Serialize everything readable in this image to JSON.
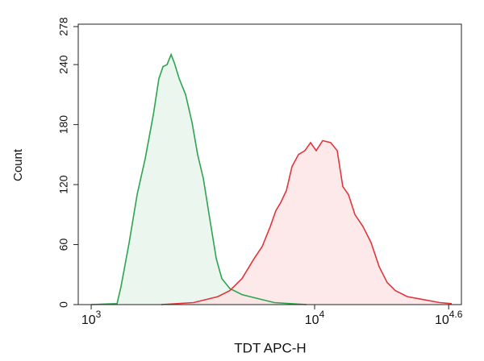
{
  "chart_data": {
    "type": "histogram-overlay",
    "x_label": "TDT APC-H",
    "y_label": "Count",
    "xscale": "log",
    "xlim": [
      875,
      45400
    ],
    "xticks": [
      {
        "value": 1000,
        "label": "10",
        "exponent": "3"
      },
      {
        "value": 10000,
        "label": "10",
        "exponent": "4"
      },
      {
        "value": 39810.717,
        "label": "10",
        "exponent": "4.6"
      }
    ],
    "ylim": [
      0,
      278
    ],
    "yticks": [
      0,
      60,
      120,
      180,
      240,
      278
    ],
    "series": [
      {
        "color": "#2ea44f",
        "fill": "#e6f4ea",
        "x": [
          1000,
          1305,
          1360,
          1478,
          1606,
          1745,
          1897,
          2010,
          2096,
          2185,
          2278,
          2354,
          2475,
          2645,
          2827,
          2996,
          3176,
          3394,
          3628,
          3844,
          4178,
          4733,
          5588,
          6598,
          7793,
          9203
        ],
        "values": [
          0,
          1,
          18,
          62,
          110,
          146,
          190,
          226,
          238,
          240,
          250,
          242,
          226,
          210,
          182,
          150,
          126,
          86,
          46,
          26,
          16,
          10,
          6,
          2,
          1,
          0
        ]
      },
      {
        "color": "#e0363c",
        "fill": "#fde4e4",
        "x": [
          2061,
          2874,
          3688,
          4178,
          4733,
          5361,
          5826,
          6331,
          6708,
          7054,
          7474,
          7923,
          8470,
          9050,
          9592,
          10167,
          10867,
          11808,
          12623,
          13378,
          14178,
          15154,
          16465,
          17889,
          19440,
          21123,
          22962,
          26013,
          30719,
          36277,
          41083
        ],
        "values": [
          0,
          2,
          8,
          14,
          26,
          46,
          58,
          78,
          94,
          102,
          114,
          138,
          150,
          154,
          162,
          154,
          164,
          162,
          154,
          118,
          110,
          90,
          78,
          62,
          38,
          22,
          14,
          8,
          5,
          2,
          1
        ]
      }
    ]
  }
}
